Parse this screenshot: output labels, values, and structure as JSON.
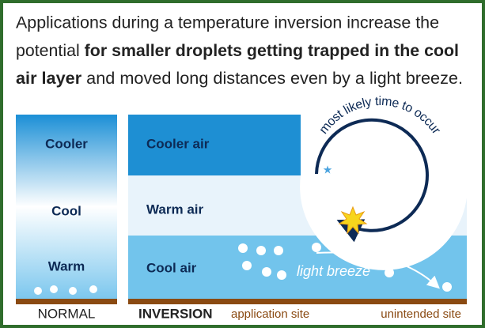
{
  "intro": {
    "line1": "Applications during a temperature inversion increase the",
    "line2_plain": "potential",
    "line2_bold": "for smaller droplets getting trapped in the cool",
    "line3_bold": "air layer",
    "line3_plain": "and moved long distances even by a light breeze."
  },
  "normal": {
    "labels": [
      "Cooler",
      "Cool",
      "Warm"
    ],
    "caption": "NORMAL"
  },
  "inversion": {
    "layers": [
      "Cooler air",
      "Warm air",
      "Cool air"
    ],
    "caption": "INVERSION",
    "arc_text": "most likely time to occur",
    "breeze": "light breeze",
    "sites": [
      "application site",
      "unintended site"
    ]
  }
}
